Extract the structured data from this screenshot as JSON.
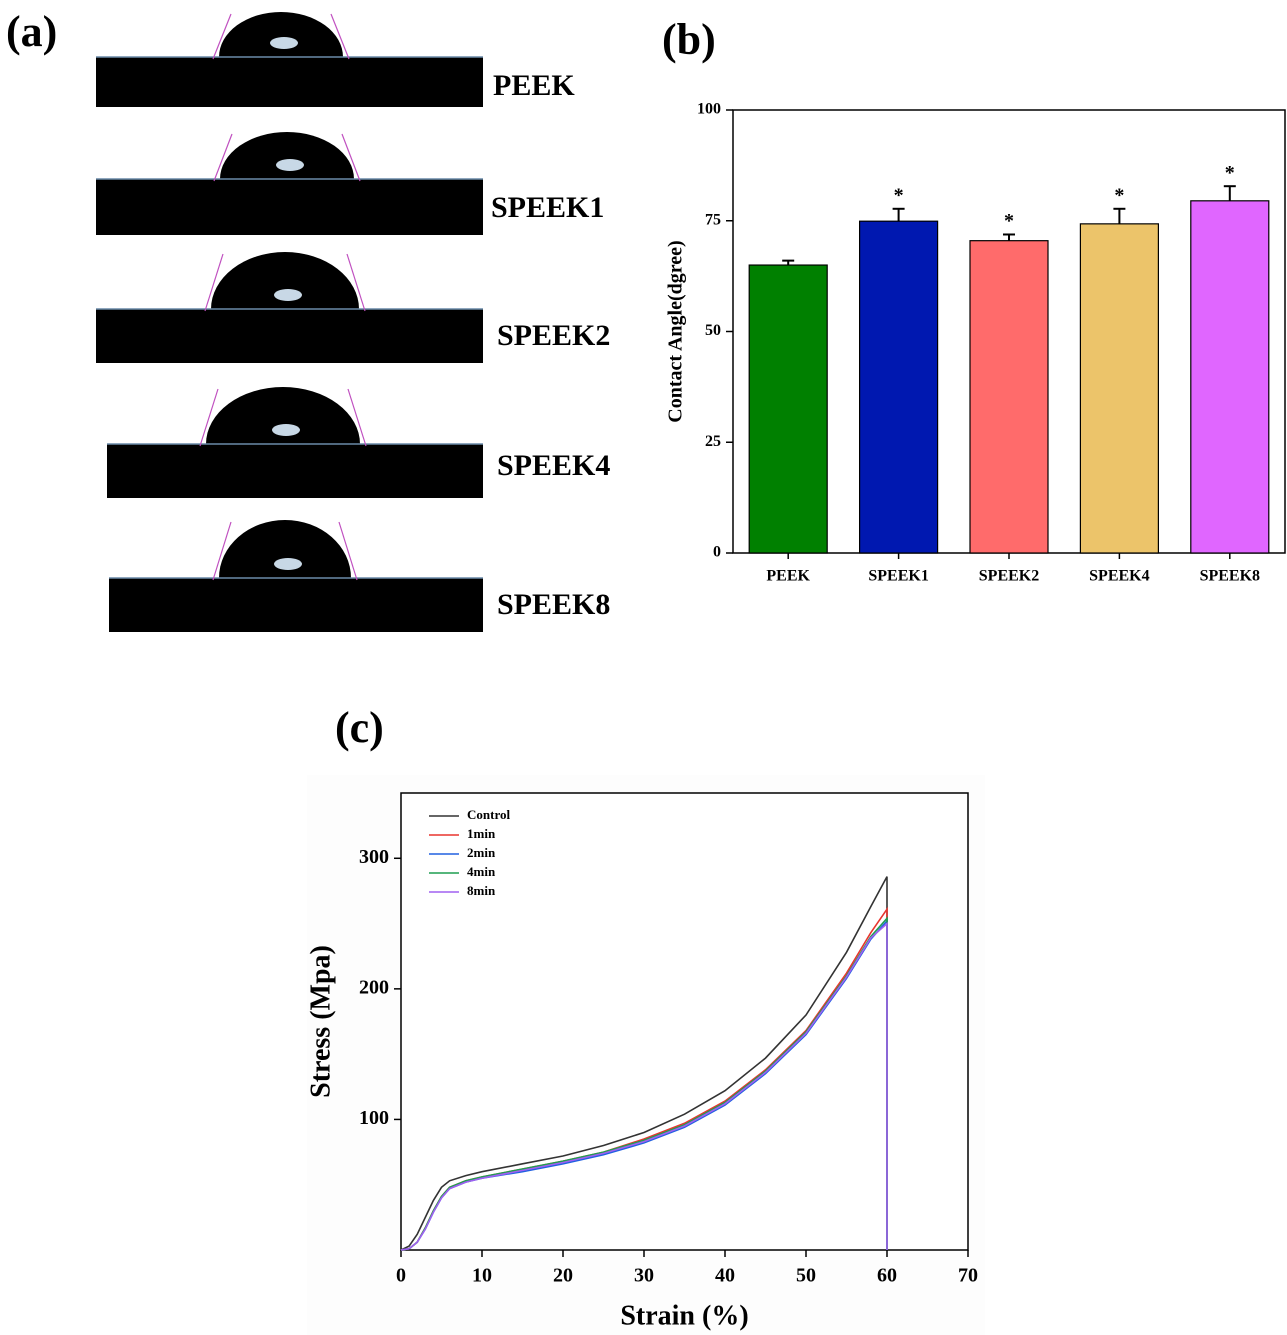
{
  "panel_a": {
    "label": "(a)",
    "samples": [
      "PEEK",
      "SPEEK1",
      "SPEEK2",
      "SPEEK4",
      "SPEEK8"
    ]
  },
  "chart_data": [
    {
      "type": "bar",
      "panel_label": "(b)",
      "y_label": "Contact Angle(dgree)",
      "categories": [
        "PEEK",
        "SPEEK1",
        "SPEEK2",
        "SPEEK4",
        "SPEEK8"
      ],
      "values": [
        65,
        74.9,
        70.5,
        74.3,
        79.5
      ],
      "errors": [
        1,
        2.8,
        1.4,
        3.4,
        3.3
      ],
      "annotations": [
        null,
        "*",
        "*",
        "*",
        "*"
      ],
      "colors": [
        "#008000",
        "#0018b0",
        "#ff6b6b",
        "#ecc46a",
        "#e066ff"
      ],
      "ylim": [
        0,
        100
      ],
      "yticks": [
        0,
        25,
        50,
        75,
        100
      ]
    },
    {
      "type": "line",
      "panel_label": "(c)",
      "x_label": "Strain (%)",
      "y_label": "Stress (Mpa)",
      "x": [
        0,
        1,
        2,
        3,
        4,
        5,
        6,
        8,
        10,
        15,
        20,
        25,
        30,
        35,
        40,
        45,
        50,
        55,
        58,
        60,
        60
      ],
      "series": [
        {
          "name": "Control",
          "color": "#333333",
          "values": [
            0,
            3,
            12,
            25,
            38,
            48,
            53,
            57,
            60,
            66,
            72,
            80,
            90,
            104,
            122,
            147,
            180,
            228,
            263,
            286,
            0
          ]
        },
        {
          "name": "1min",
          "color": "#e8352e",
          "values": [
            0,
            1,
            6,
            17,
            30,
            41,
            48,
            53,
            56,
            62,
            68,
            75,
            85,
            97,
            114,
            138,
            168,
            212,
            243,
            261,
            0
          ]
        },
        {
          "name": "2min",
          "color": "#2060e0",
          "values": [
            0,
            1,
            6,
            16,
            29,
            40,
            47,
            52,
            55,
            60,
            66,
            73,
            82,
            94,
            111,
            135,
            165,
            208,
            238,
            252,
            0
          ]
        },
        {
          "name": "4min",
          "color": "#1e9e50",
          "values": [
            0,
            1,
            6,
            17,
            30,
            41,
            48,
            53,
            56,
            62,
            68,
            75,
            84,
            96,
            113,
            137,
            167,
            210,
            240,
            254,
            0
          ]
        },
        {
          "name": "8min",
          "color": "#a060f0",
          "values": [
            0,
            1,
            6,
            16,
            29,
            40,
            47,
            52,
            55,
            61,
            67,
            74,
            83,
            95,
            112,
            136,
            166,
            209,
            239,
            250,
            0
          ]
        }
      ],
      "xlim": [
        0,
        70
      ],
      "xticks": [
        0,
        10,
        20,
        30,
        40,
        50,
        60,
        70
      ],
      "ylim": [
        0,
        350
      ],
      "yticks": [
        100,
        200,
        300
      ],
      "legend": "upper left"
    }
  ]
}
